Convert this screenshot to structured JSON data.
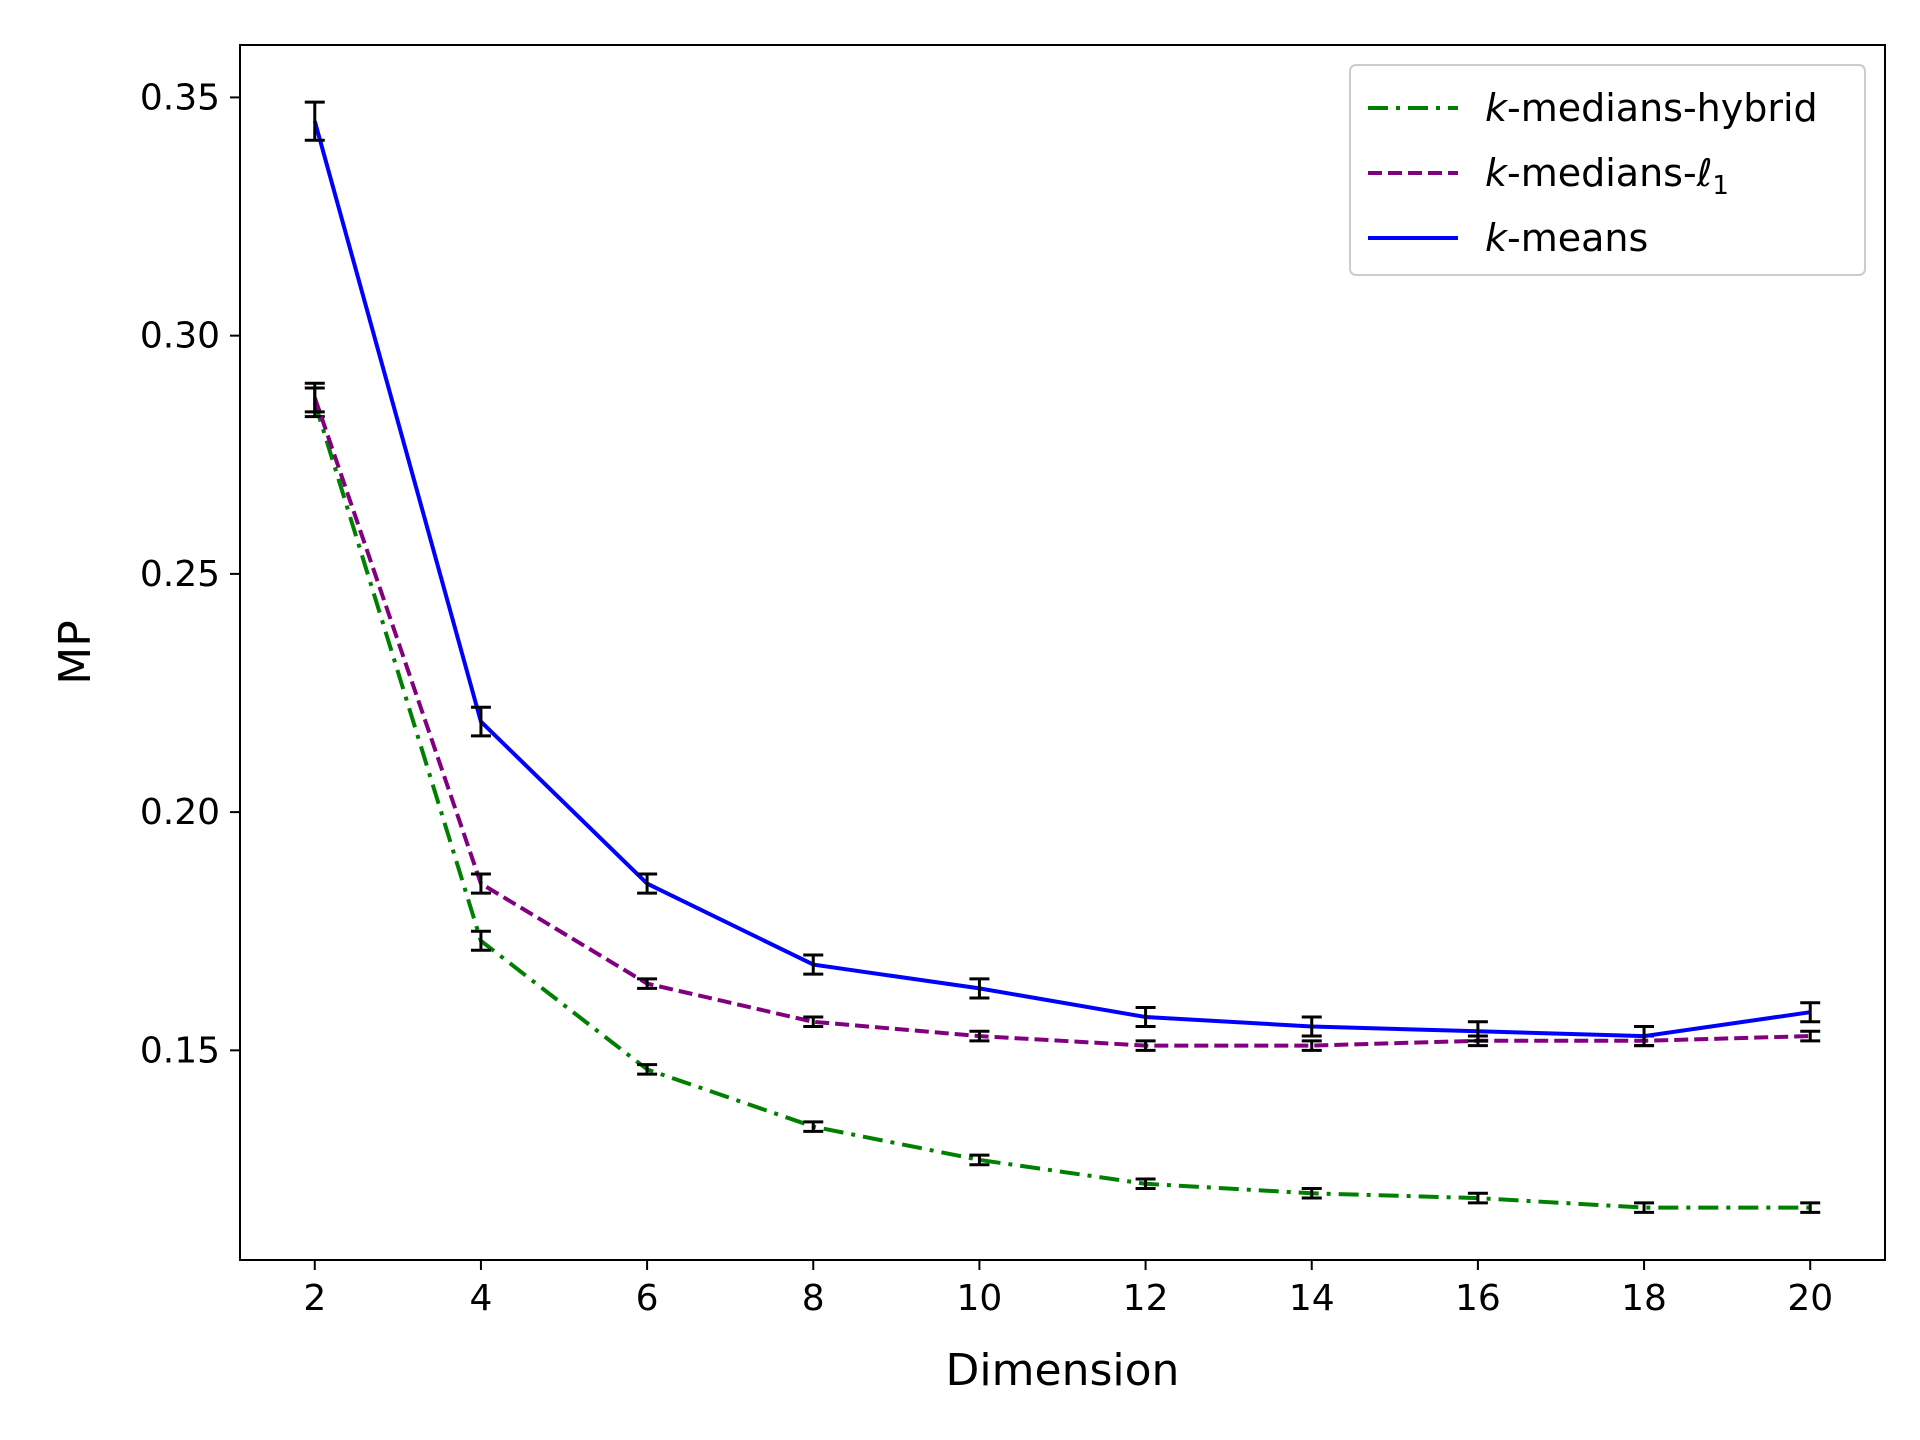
{
  "chart_data": {
    "type": "line",
    "title": "",
    "xlabel": "Dimension",
    "ylabel": "MP",
    "x": [
      2,
      4,
      6,
      8,
      10,
      12,
      14,
      16,
      18,
      20
    ],
    "xlim": [
      1.1,
      20.9
    ],
    "ylim": [
      0.106,
      0.361
    ],
    "xticks": [
      "2",
      "4",
      "6",
      "8",
      "10",
      "12",
      "14",
      "16",
      "18",
      "20"
    ],
    "yticks": [
      "0.15",
      "0.20",
      "0.25",
      "0.30",
      "0.35"
    ],
    "ytick_values": [
      0.15,
      0.2,
      0.25,
      0.3,
      0.35
    ],
    "grid": false,
    "legend_position": "top-right",
    "series": [
      {
        "name": "k-medians-hybrid",
        "legend_prefix": "k",
        "legend_suffix": "-medians-hybrid",
        "color": "#008000",
        "style": "dashdot",
        "values": [
          0.286,
          0.173,
          0.146,
          0.134,
          0.127,
          0.122,
          0.12,
          0.119,
          0.117,
          0.117
        ],
        "errors": [
          0.003,
          0.002,
          0.001,
          0.001,
          0.001,
          0.001,
          0.001,
          0.001,
          0.001,
          0.001
        ]
      },
      {
        "name": "k-medians-ℓ1",
        "legend_prefix": "k",
        "legend_suffix": "-medians-",
        "legend_math": "ℓ",
        "legend_sub": "1",
        "color": "#800080",
        "style": "dashed",
        "values": [
          0.287,
          0.185,
          0.164,
          0.156,
          0.153,
          0.151,
          0.151,
          0.152,
          0.152,
          0.153
        ],
        "errors": [
          0.003,
          0.002,
          0.001,
          0.001,
          0.001,
          0.001,
          0.001,
          0.001,
          0.001,
          0.001
        ]
      },
      {
        "name": "k-means",
        "legend_prefix": "k",
        "legend_suffix": "-means",
        "color": "#0000ff",
        "style": "solid",
        "values": [
          0.345,
          0.219,
          0.185,
          0.168,
          0.163,
          0.157,
          0.155,
          0.154,
          0.153,
          0.158
        ],
        "errors": [
          0.004,
          0.003,
          0.002,
          0.002,
          0.002,
          0.002,
          0.002,
          0.002,
          0.002,
          0.002
        ]
      }
    ]
  }
}
